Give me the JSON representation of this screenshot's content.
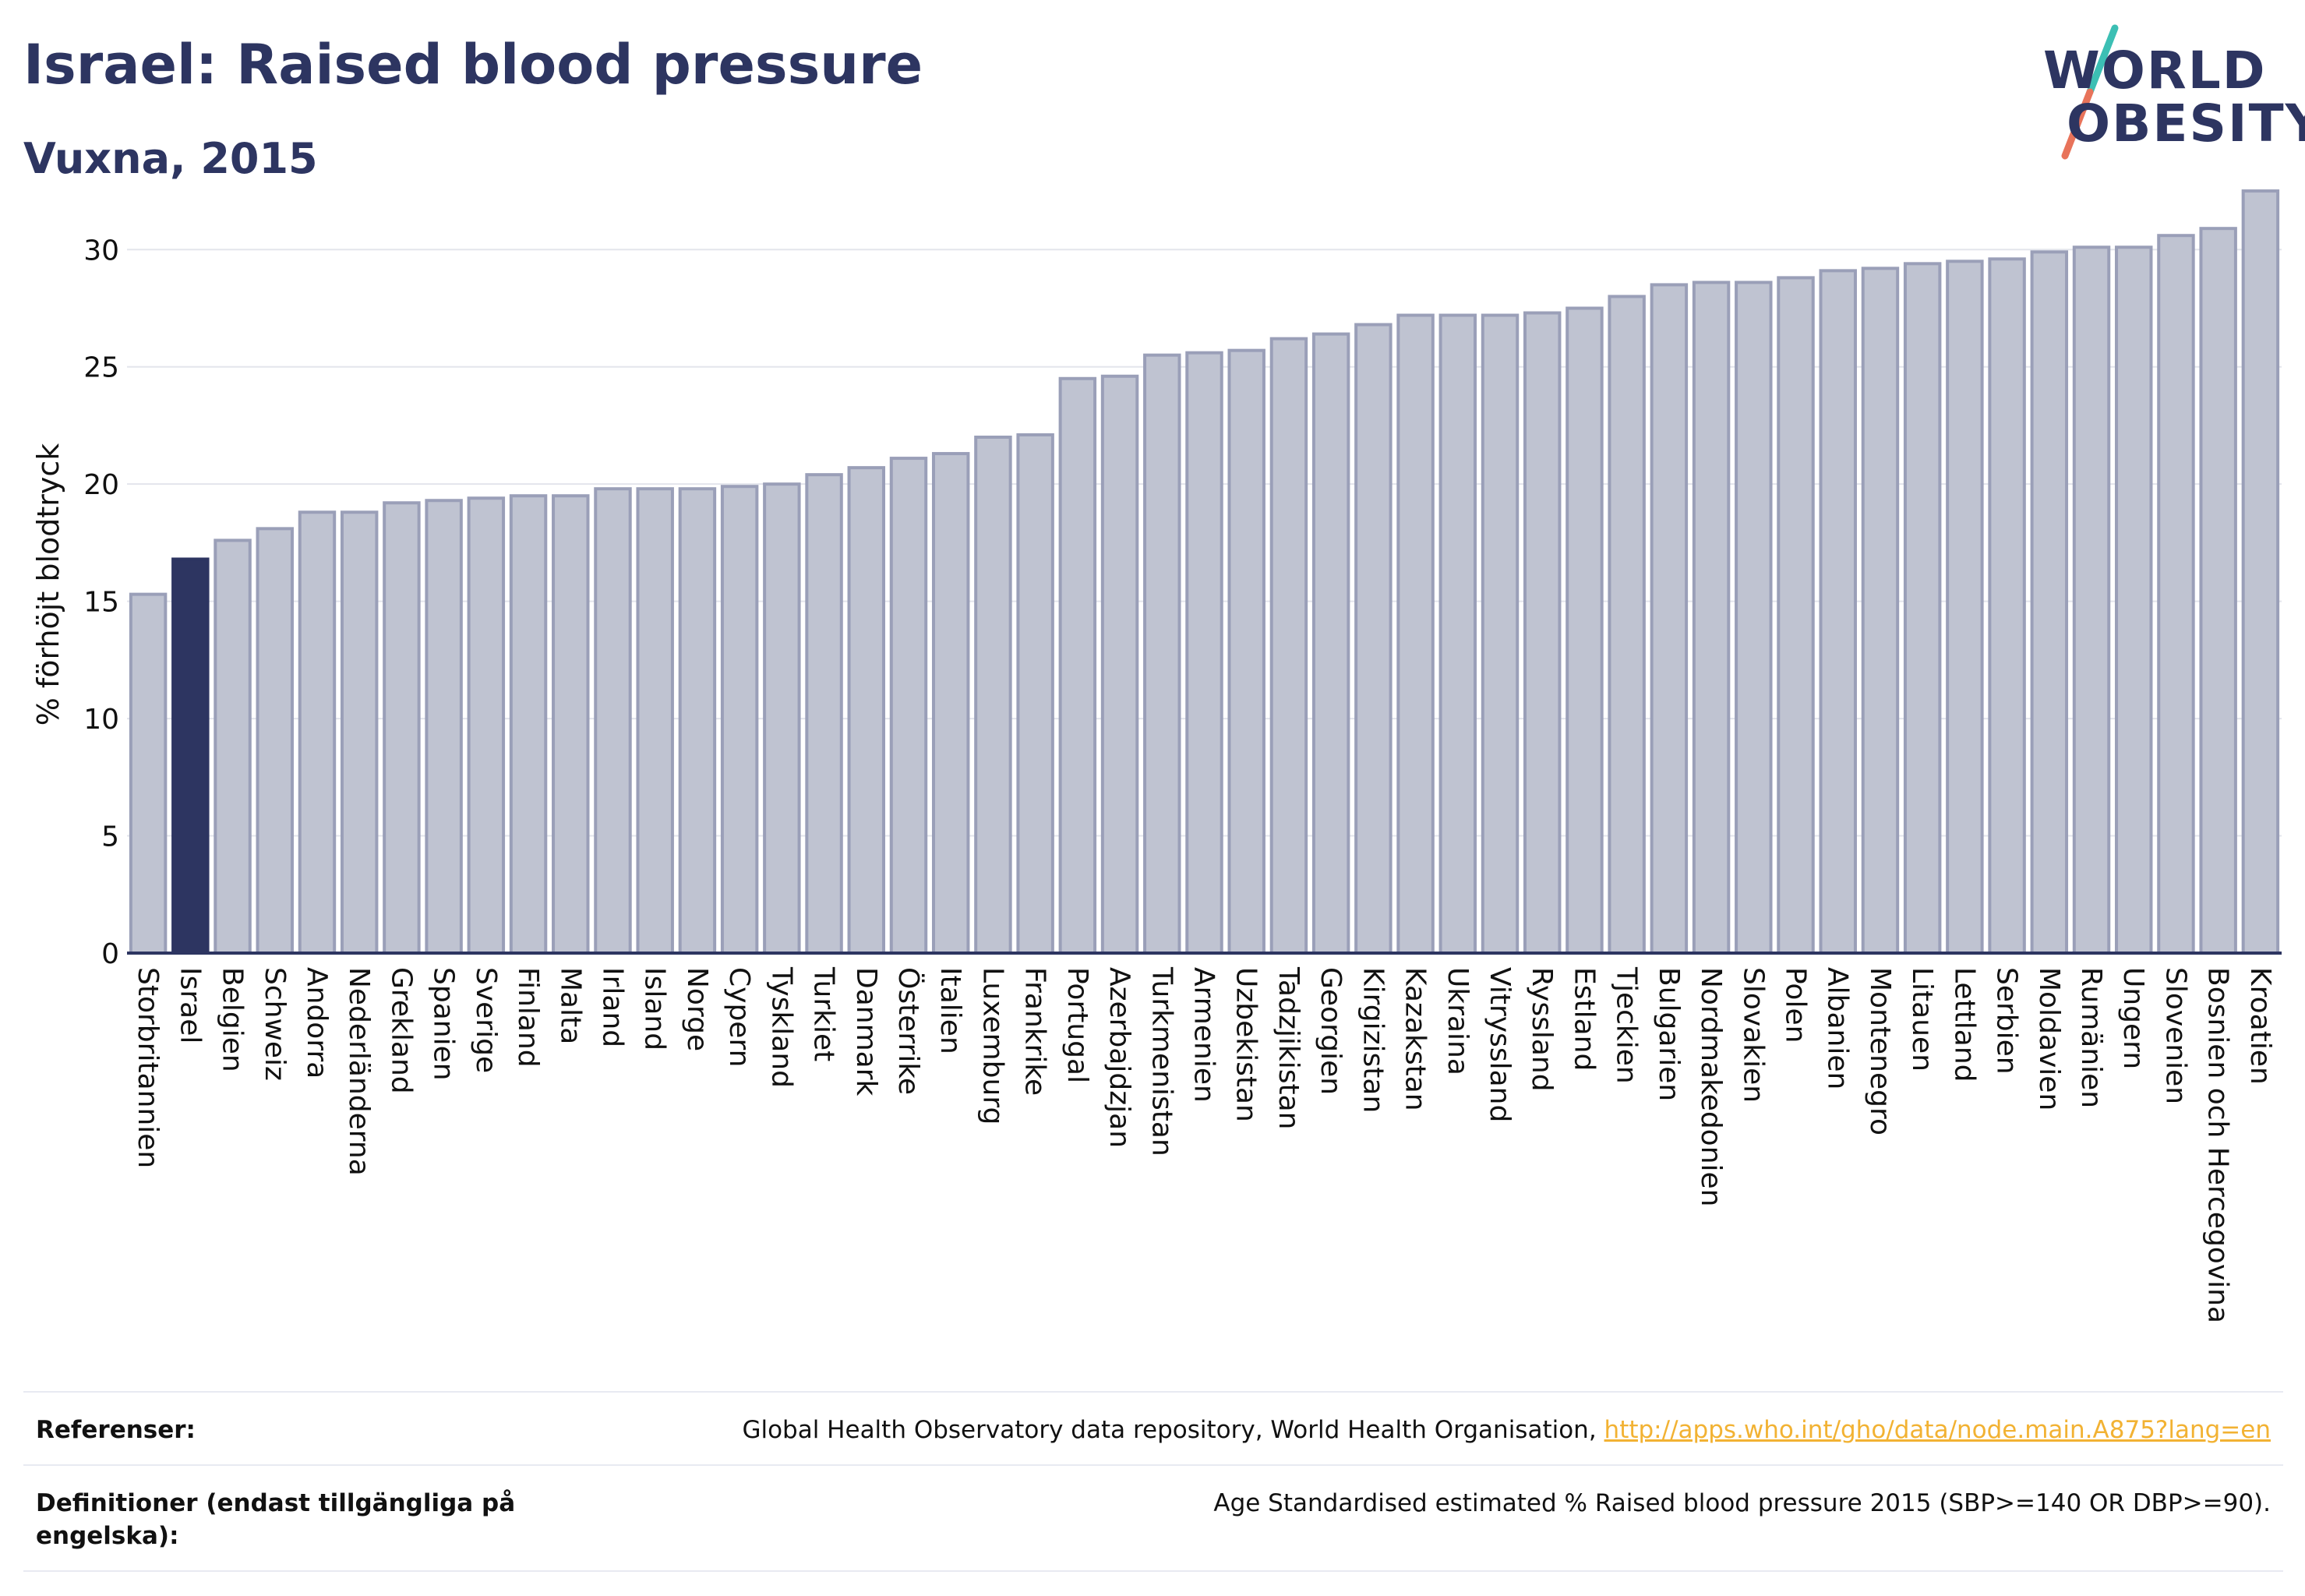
{
  "header": {
    "title": "Israel: Raised blood pressure",
    "subtitle": "Vuxna, 2015"
  },
  "logo": {
    "line1": "WORLD",
    "line2": "OBESITY",
    "colors": {
      "text": "#2d3561",
      "slash_top": "#3cbfb4",
      "slash_bottom": "#e8735a"
    }
  },
  "colors": {
    "bar_fill": "#bfc3d1",
    "bar_stroke": "#9a9fb8",
    "highlight_fill": "#2d3561",
    "grid": "#e3e5ec",
    "axis": "#2d3561",
    "link": "#f2b233"
  },
  "chart_data": {
    "type": "bar",
    "title": "Israel: Raised blood pressure",
    "subtitle": "Vuxna, 2015",
    "ylabel": "% förhöjt blodtryck",
    "xlabel": "",
    "ylim": [
      0,
      33
    ],
    "yticks": [
      0,
      5,
      10,
      15,
      20,
      25,
      30
    ],
    "grid": true,
    "highlight": "Israel",
    "categories": [
      "Storbritannien",
      "Israel",
      "Belgien",
      "Schweiz",
      "Andorra",
      "Nederländerna",
      "Grekland",
      "Spanien",
      "Sverige",
      "Finland",
      "Malta",
      "Irland",
      "Island",
      "Norge",
      "Cypern",
      "Tyskland",
      "Turkiet",
      "Danmark",
      "Österrike",
      "Italien",
      "Luxemburg",
      "Frankrike",
      "Portugal",
      "Azerbajdzjan",
      "Turkmenistan",
      "Armenien",
      "Uzbekistan",
      "Tadzjikistan",
      "Georgien",
      "Kirgizistan",
      "Kazakstan",
      "Ukraina",
      "Vitryssland",
      "Ryssland",
      "Estland",
      "Tjeckien",
      "Bulgarien",
      "Nordmakedonien",
      "Slovakien",
      "Polen",
      "Albanien",
      "Montenegro",
      "Litauen",
      "Lettland",
      "Serbien",
      "Moldavien",
      "Rumänien",
      "Ungern",
      "Slovenien",
      "Bosnien och Hercegovina",
      "Kroatien"
    ],
    "values": [
      15.3,
      16.8,
      17.6,
      18.1,
      18.8,
      18.8,
      19.2,
      19.3,
      19.4,
      19.5,
      19.5,
      19.8,
      19.8,
      19.8,
      19.9,
      20.0,
      20.4,
      20.7,
      21.1,
      21.3,
      22.0,
      22.1,
      24.5,
      24.6,
      25.5,
      25.6,
      25.7,
      26.2,
      26.4,
      26.8,
      27.2,
      27.2,
      27.2,
      27.3,
      27.5,
      28.0,
      28.5,
      28.6,
      28.6,
      28.8,
      29.1,
      29.2,
      29.4,
      29.5,
      29.6,
      29.9,
      30.1,
      30.1,
      30.6,
      30.9,
      32.5
    ]
  },
  "footer": {
    "references_label": "Referenser:",
    "references_text": "Global Health Observatory data repository, World Health Organisation, ",
    "references_link": "http://apps.who.int/gho/data/node.main.A875?lang=en",
    "definitions_label": "Definitioner (endast tillgängliga på engelska):",
    "definitions_text": "Age Standardised estimated % Raised blood pressure 2015 (SBP>=140 OR DBP>=90)."
  }
}
